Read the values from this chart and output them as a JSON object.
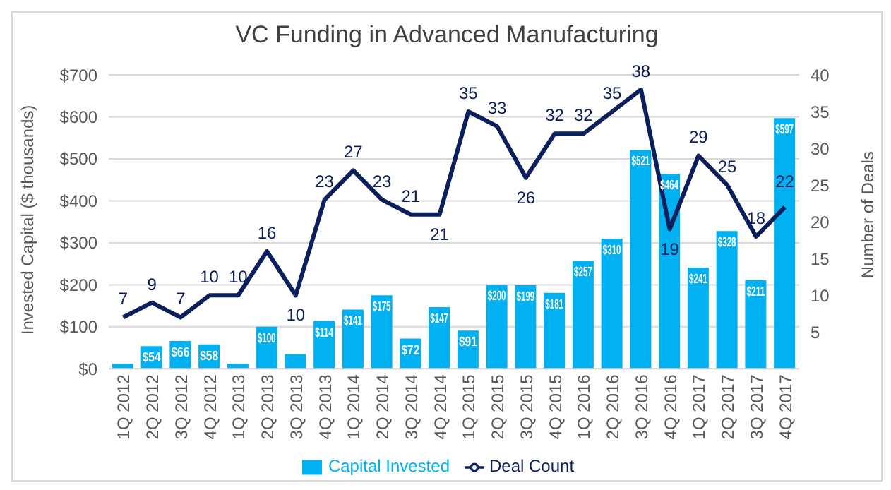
{
  "chart_data": {
    "type": "bar",
    "title": "VC Funding in Advanced Manufacturing",
    "ylabel": "Invested Capital ($ thousands)",
    "y2label": "Number of Deals",
    "categories": [
      "1Q 2012",
      "2Q 2012",
      "3Q 2012",
      "4Q 2012",
      "1Q 2013",
      "2Q 2013",
      "3Q 2013",
      "4Q 2013",
      "1Q 2014",
      "2Q 2014",
      "3Q 2014",
      "4Q 2014",
      "1Q 2015",
      "2Q 2015",
      "3Q 2015",
      "4Q 2015",
      "1Q 2016",
      "2Q 2016",
      "3Q 2016",
      "4Q 2016",
      "1Q 2017",
      "2Q 2017",
      "3Q 2017",
      "4Q 2017"
    ],
    "series": [
      {
        "name": "Capital Invested",
        "color": "#00b0f0",
        "values": [
          12,
          54,
          66,
          58,
          12,
          100,
          35,
          114,
          141,
          175,
          72,
          147,
          91,
          200,
          199,
          181,
          257,
          310,
          521,
          464,
          241,
          328,
          211,
          597
        ],
        "value_labels": [
          null,
          "$54",
          "$66",
          "$58",
          null,
          "$100",
          null,
          "$114",
          "$141",
          "$175",
          "$72",
          "$147",
          "$91",
          "$200",
          "$199",
          "$181",
          "$257",
          "$310",
          "$521",
          "$464",
          "$241",
          "$328",
          "$211",
          "$597"
        ]
      },
      {
        "name": "Deal Count",
        "type": "line",
        "axis": "y2",
        "color": "#0b1f5c",
        "marker": "none",
        "values": [
          7,
          9,
          7,
          10,
          10,
          16,
          10,
          23,
          27,
          23,
          21,
          21,
          35,
          33,
          26,
          32,
          32,
          35,
          38,
          19,
          29,
          25,
          18,
          22
        ],
        "value_labels": [
          "7",
          "9",
          "7",
          "10",
          "10",
          "16",
          "10",
          "23",
          "27",
          "23",
          "21",
          "21",
          "35",
          "33",
          "26",
          "32",
          "32",
          "35",
          "38",
          "19",
          "29",
          "25",
          "18",
          "22"
        ]
      }
    ],
    "ylim": [
      0,
      700
    ],
    "yticks": [
      {
        "value": 0,
        "label": "$0"
      },
      {
        "value": 100,
        "label": "$100"
      },
      {
        "value": 200,
        "label": "$200"
      },
      {
        "value": 300,
        "label": "$300"
      },
      {
        "value": 400,
        "label": "$400"
      },
      {
        "value": 500,
        "label": "$500"
      },
      {
        "value": 600,
        "label": "$600"
      },
      {
        "value": 700,
        "label": "$700"
      }
    ],
    "y2lim": [
      0,
      40
    ],
    "y2ticks": [
      5,
      10,
      15,
      20,
      25,
      30,
      35,
      40
    ],
    "grid": "y",
    "legend": "bottom"
  }
}
